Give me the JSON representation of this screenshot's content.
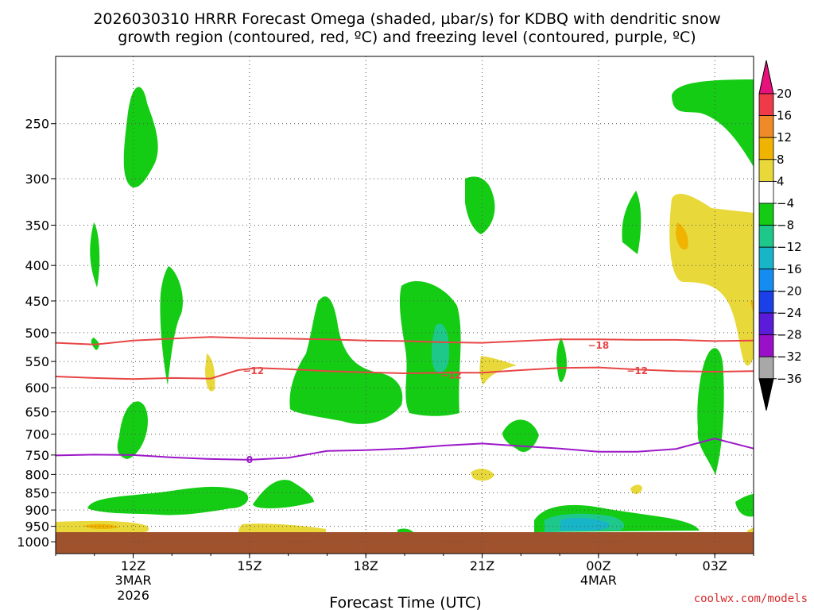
{
  "chart_data": {
    "type": "heatmap",
    "title_line1": "2026030310 HRRR Forecast Omega (shaded, µbar/s) for KDBQ with dendritic snow",
    "title_line2": "growth region (contoured, red, ºC) and freezing level (contoured, purple, ºC)",
    "xlabel": "Forecast Time (UTC)",
    "credit": "coolwx.com/models",
    "xlim": [
      10,
      28
    ],
    "ylim": [
      1040,
      200
    ],
    "y_ticks": [
      250,
      300,
      350,
      400,
      450,
      500,
      550,
      600,
      650,
      700,
      750,
      800,
      850,
      900,
      950,
      1000
    ],
    "y_tick_labels": [
      "250",
      "300",
      "350",
      "400",
      "450",
      "500",
      "550",
      "600",
      "650",
      "700",
      "750",
      "800",
      "850",
      "900",
      "950",
      "1000"
    ],
    "x_ticks": [
      12,
      15,
      18,
      21,
      24,
      27
    ],
    "x_tick_labels": [
      "12Z",
      "15Z",
      "18Z",
      "21Z",
      "00Z",
      "03Z"
    ],
    "date_labels": [
      {
        "x": 12,
        "line1": "3MAR",
        "line2": "2026"
      },
      {
        "x": 24,
        "line1": "4MAR",
        "line2": ""
      }
    ],
    "colorbar": {
      "levels": [
        20,
        16,
        12,
        8,
        4,
        -4,
        -8,
        -12,
        -16,
        -20,
        -24,
        -28,
        -32,
        -36
      ],
      "labels": [
        "20",
        "16",
        "12",
        "8",
        "4",
        "−4",
        "−8",
        "−12",
        "−16",
        "−20",
        "−24",
        "−28",
        "−32",
        "−36"
      ],
      "colors": [
        "#ef3a4a",
        "#f08a28",
        "#f0b400",
        "#e8d83a",
        "#ffffff",
        "#14cc14",
        "#1ec88a",
        "#18b4c8",
        "#148cf0",
        "#1c40e8",
        "#5a1cd8",
        "#9a10c8",
        "#a8a8a8"
      ],
      "top_arrow_color": "#e8107a",
      "bottom_arrow_color": "#000000"
    },
    "contours": [
      {
        "name": "dgz-top",
        "label": "−18",
        "label_x": 24.0,
        "label_y": 520,
        "color": "#e84545",
        "x": [
          10,
          11,
          12,
          13,
          14,
          15,
          16,
          17,
          18,
          19,
          20,
          21,
          22,
          23,
          24,
          25,
          26,
          27,
          28
        ],
        "y": [
          517,
          520,
          513,
          510,
          507,
          509,
          510,
          511,
          513,
          514,
          516,
          517,
          514,
          511,
          511,
          512,
          512,
          514,
          513
        ]
      },
      {
        "name": "dgz-bottom",
        "label": "−12",
        "label_x": 15.1,
        "label_y": 566,
        "label2": "−12",
        "label2_x": 20.2,
        "label2_y": 574,
        "label3": "−12",
        "label3_x": 25.0,
        "label3_y": 566,
        "color": "#e84545",
        "x": [
          10,
          11,
          12,
          13,
          14,
          14.7,
          15.2,
          16,
          17,
          18,
          19,
          20,
          21,
          22,
          23,
          24,
          25,
          26,
          27,
          28
        ],
        "y": [
          578,
          581,
          583,
          581,
          582,
          566,
          562,
          564,
          568,
          570,
          572,
          571,
          571,
          566,
          562,
          561,
          565,
          568,
          569,
          568
        ]
      },
      {
        "name": "freezing-level",
        "label": "0",
        "label_x": 15.0,
        "label_y": 760,
        "color": "#9c18c8",
        "x": [
          10,
          11,
          12,
          13,
          14,
          15,
          16,
          17,
          18,
          19,
          20,
          21,
          22,
          23,
          24,
          25,
          26,
          27,
          28
        ],
        "y": [
          751,
          749,
          750,
          756,
          760,
          762,
          757,
          740,
          738,
          734,
          727,
          722,
          728,
          734,
          742,
          742,
          735,
          710,
          734
        ]
      }
    ]
  }
}
